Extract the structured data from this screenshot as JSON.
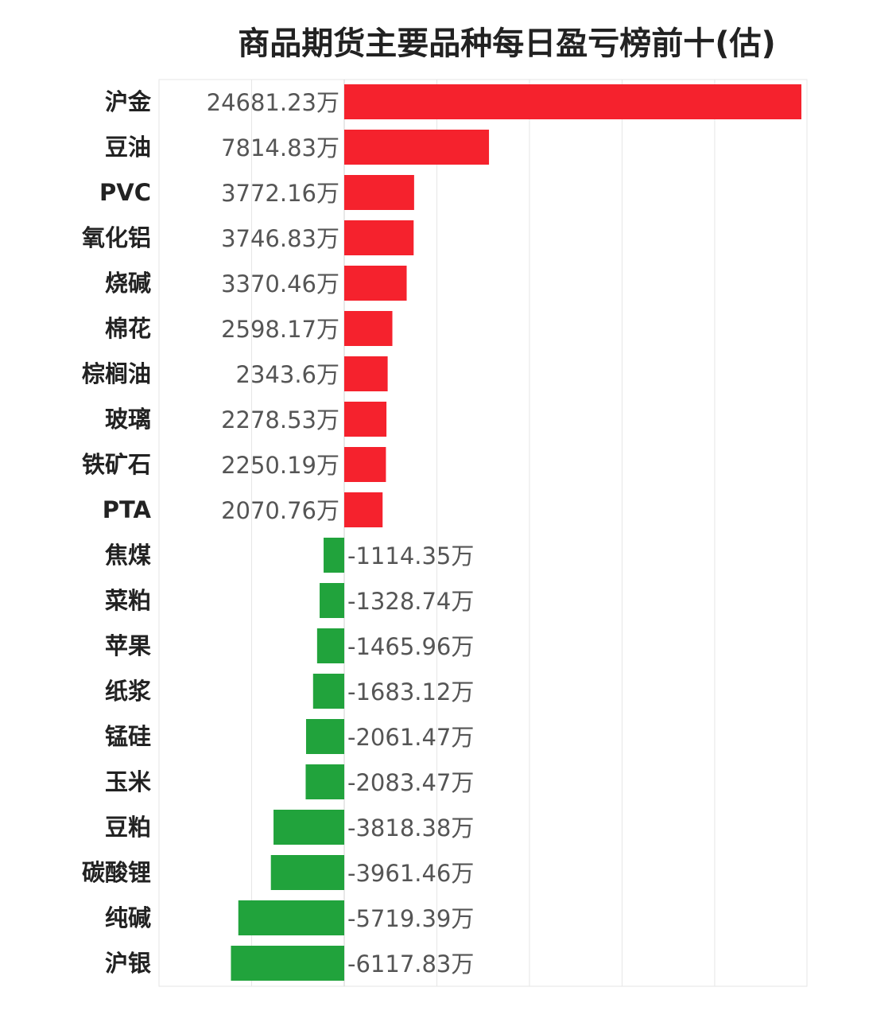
{
  "chart_data": {
    "type": "bar",
    "orientation": "horizontal",
    "title": "商品期货主要品种每日盈亏榜前十(估)",
    "unit_suffix": "万",
    "categories": [
      "沪金",
      "豆油",
      "PVC",
      "氧化铝",
      "烧碱",
      "棉花",
      "棕榈油",
      "玻璃",
      "铁矿石",
      "PTA",
      "焦煤",
      "菜粕",
      "苹果",
      "纸浆",
      "锰硅",
      "玉米",
      "豆粕",
      "碳酸锂",
      "纯碱",
      "沪银"
    ],
    "values": [
      24681.23,
      7814.83,
      3772.16,
      3746.83,
      3370.46,
      2598.17,
      2343.6,
      2278.53,
      2250.19,
      2070.76,
      -1114.35,
      -1328.74,
      -1465.96,
      -1683.12,
      -2061.47,
      -2083.47,
      -3818.38,
      -3961.46,
      -5719.39,
      -6117.83
    ],
    "value_labels": [
      "24681.23万",
      "7814.83万",
      "3772.16万",
      "3746.83万",
      "3370.46万",
      "2598.17万",
      "2343.6万",
      "2278.53万",
      "2250.19万",
      "2070.76万",
      "-1114.35万",
      "-1328.74万",
      "-1465.96万",
      "-1683.12万",
      "-2061.47万",
      "-2083.47万",
      "-3818.38万",
      "-3961.46万",
      "-5719.39万",
      "-6117.83万"
    ],
    "xlim": [
      -10000,
      25000
    ],
    "grid": true,
    "colors": {
      "positive": "#f5222d",
      "negative": "#21a33c",
      "grid": "#e6e6e6"
    }
  }
}
